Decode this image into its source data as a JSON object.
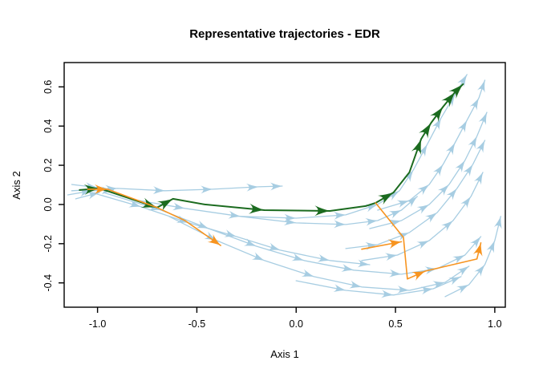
{
  "chart_data": {
    "type": "line",
    "title": "Representative trajectories - EDR",
    "xlabel": "Axis 1",
    "ylabel": "Axis 2",
    "xlim": [
      -1.168,
      1.053
    ],
    "ylim": [
      -0.524,
      0.724
    ],
    "x_ticks": [
      -1.0,
      -0.5,
      0.0,
      0.5,
      1.0
    ],
    "y_ticks": [
      -0.4,
      -0.2,
      0.0,
      0.2,
      0.4,
      0.6
    ],
    "grid": false,
    "legend": "none",
    "colors": {
      "background_trajectory": "#a7cde2",
      "representative_green": "#1b6b1f",
      "representative_orange": "#f79420",
      "axis": "#000000"
    },
    "series": [
      {
        "name": "background-top-band",
        "role": "background",
        "color_key": "background_trajectory",
        "points": [
          [
            -1.13,
            0.07
          ],
          [
            -0.9,
            0.082
          ],
          [
            -0.66,
            0.07
          ],
          [
            -0.42,
            0.078
          ],
          [
            -0.19,
            0.09
          ],
          [
            -0.07,
            0.094
          ]
        ],
        "arrows": [
          1,
          2,
          3,
          4,
          5
        ]
      },
      {
        "name": "background-cluster-1",
        "role": "background",
        "color_key": "background_trajectory",
        "points": [
          [
            -1.15,
            0.049
          ],
          [
            -1.03,
            0.07
          ],
          [
            -0.92,
            0.074
          ]
        ],
        "arrows": [
          1,
          2
        ]
      },
      {
        "name": "background-cluster-2",
        "role": "background",
        "color_key": "background_trajectory",
        "points": [
          [
            -1.13,
            0.102
          ],
          [
            -1.0,
            0.086
          ]
        ],
        "arrows": [
          1
        ]
      },
      {
        "name": "background-cluster-3",
        "role": "background",
        "color_key": "background_trajectory",
        "points": [
          [
            -1.11,
            0.029
          ],
          [
            -0.99,
            0.061
          ]
        ],
        "arrows": [
          1
        ]
      },
      {
        "name": "background-mid-rise-left",
        "role": "background",
        "color_key": "background_trajectory",
        "points": [
          [
            -0.28,
            -0.061
          ],
          [
            0.0,
            -0.07
          ],
          [
            0.25,
            -0.053
          ],
          [
            0.41,
            0.0
          ],
          [
            0.52,
            0.07
          ],
          [
            0.59,
            0.176
          ],
          [
            0.66,
            0.307
          ],
          [
            0.73,
            0.442
          ],
          [
            0.8,
            0.561
          ],
          [
            0.86,
            0.663
          ]
        ],
        "arrows": [
          1,
          2,
          3,
          4,
          5,
          6,
          7,
          8,
          9
        ]
      },
      {
        "name": "background-toprise-right",
        "role": "background",
        "color_key": "background_trajectory",
        "points": [
          [
            0.41,
            -0.029
          ],
          [
            0.57,
            0.02
          ],
          [
            0.67,
            0.102
          ],
          [
            0.74,
            0.205
          ],
          [
            0.8,
            0.315
          ],
          [
            0.86,
            0.43
          ],
          [
            0.92,
            0.544
          ],
          [
            0.95,
            0.634
          ]
        ],
        "arrows": [
          1,
          2,
          3,
          4,
          5,
          6,
          7
        ]
      },
      {
        "name": "background-mid-band",
        "role": "background",
        "color_key": "background_trajectory",
        "points": [
          [
            -0.84,
            0.029
          ],
          [
            -0.56,
            -0.02
          ],
          [
            -0.28,
            -0.061
          ],
          [
            0.0,
            -0.094
          ],
          [
            0.25,
            -0.102
          ],
          [
            0.41,
            -0.082
          ],
          [
            0.53,
            -0.029
          ],
          [
            0.61,
            0.041
          ]
        ],
        "arrows": [
          1,
          2,
          3,
          4,
          5,
          6,
          7
        ]
      },
      {
        "name": "background-sweep-1",
        "role": "background",
        "color_key": "background_trajectory",
        "points": [
          [
            -0.97,
            0.061
          ],
          [
            -0.68,
            -0.029
          ],
          [
            -0.44,
            -0.123
          ],
          [
            -0.2,
            -0.213
          ],
          [
            0.04,
            -0.286
          ],
          [
            0.29,
            -0.335
          ],
          [
            0.53,
            -0.356
          ],
          [
            0.71,
            -0.327
          ],
          [
            0.85,
            -0.258
          ],
          [
            0.93,
            -0.164
          ]
        ],
        "arrows": [
          1,
          2,
          3,
          4,
          5,
          6,
          7,
          8,
          9
        ]
      },
      {
        "name": "background-sweep-2",
        "role": "background",
        "color_key": "background_trajectory",
        "points": [
          [
            -0.64,
            -0.061
          ],
          [
            -0.4,
            -0.184
          ],
          [
            -0.16,
            -0.286
          ],
          [
            0.09,
            -0.368
          ],
          [
            0.33,
            -0.421
          ],
          [
            0.57,
            -0.438
          ],
          [
            0.75,
            -0.397
          ],
          [
            0.87,
            -0.315
          ]
        ],
        "arrows": [
          1,
          2,
          3,
          4,
          5,
          6,
          7
        ]
      },
      {
        "name": "background-bottom-trough",
        "role": "background",
        "color_key": "background_trajectory",
        "points": [
          [
            0.0,
            -0.389
          ],
          [
            0.25,
            -0.438
          ],
          [
            0.49,
            -0.462
          ],
          [
            0.69,
            -0.43
          ],
          [
            0.83,
            -0.368
          ]
        ],
        "arrows": [
          1,
          2,
          3,
          4
        ]
      },
      {
        "name": "background-right-fan-1",
        "role": "background",
        "color_key": "background_trajectory",
        "points": [
          [
            0.25,
            -0.225
          ],
          [
            0.41,
            -0.205
          ],
          [
            0.57,
            -0.143
          ],
          [
            0.71,
            -0.041
          ],
          [
            0.81,
            0.082
          ],
          [
            0.89,
            0.205
          ],
          [
            0.95,
            0.327
          ]
        ],
        "arrows": [
          1,
          2,
          3,
          4,
          5,
          6
        ]
      },
      {
        "name": "background-right-fan-2",
        "role": "background",
        "color_key": "background_trajectory",
        "points": [
          [
            0.33,
            -0.286
          ],
          [
            0.51,
            -0.258
          ],
          [
            0.67,
            -0.184
          ],
          [
            0.79,
            -0.082
          ],
          [
            0.88,
            0.041
          ],
          [
            0.94,
            0.164
          ]
        ],
        "arrows": [
          1,
          2,
          3,
          4,
          5
        ]
      },
      {
        "name": "background-right-edge",
        "role": "background",
        "color_key": "background_trajectory",
        "points": [
          [
            0.75,
            -0.47
          ],
          [
            0.87,
            -0.409
          ],
          [
            0.95,
            -0.307
          ],
          [
            1.0,
            -0.184
          ],
          [
            1.03,
            -0.061
          ]
        ],
        "arrows": [
          1,
          2,
          3,
          4
        ]
      },
      {
        "name": "background-diag-mid",
        "role": "background",
        "color_key": "background_trajectory",
        "points": [
          [
            -1.03,
            0.061
          ],
          [
            -0.78,
            -0.012
          ],
          [
            -0.54,
            -0.094
          ],
          [
            -0.3,
            -0.164
          ],
          [
            -0.08,
            -0.233
          ],
          [
            0.17,
            -0.286
          ],
          [
            0.37,
            -0.307
          ]
        ],
        "arrows": [
          1,
          2,
          3,
          4,
          5,
          6
        ]
      },
      {
        "name": "background-right-fan-3",
        "role": "background",
        "color_key": "background_trajectory",
        "points": [
          [
            0.37,
            -0.123
          ],
          [
            0.53,
            -0.082
          ],
          [
            0.67,
            0.0
          ],
          [
            0.77,
            0.102
          ],
          [
            0.85,
            0.225
          ],
          [
            0.91,
            0.348
          ],
          [
            0.96,
            0.47
          ]
        ],
        "arrows": [
          1,
          2,
          3,
          4,
          5,
          6
        ]
      },
      {
        "name": "representative-green",
        "role": "representative",
        "color_key": "representative_green",
        "points": [
          [
            -1.09,
            0.074
          ],
          [
            -0.99,
            0.082
          ],
          [
            -0.7,
            -0.016
          ],
          [
            -0.62,
            0.029
          ],
          [
            -0.46,
            0.0
          ],
          [
            -0.16,
            -0.029
          ],
          [
            0.17,
            -0.033
          ],
          [
            0.35,
            -0.008
          ],
          [
            0.4,
            0.008
          ],
          [
            0.49,
            0.061
          ],
          [
            0.57,
            0.164
          ],
          [
            0.63,
            0.335
          ],
          [
            0.68,
            0.417
          ],
          [
            0.74,
            0.499
          ],
          [
            0.8,
            0.573
          ],
          [
            0.84,
            0.614
          ]
        ],
        "arrows": [
          1,
          2,
          3,
          5,
          6,
          9,
          11,
          12,
          13,
          14,
          15
        ]
      },
      {
        "name": "representative-orange-1",
        "role": "representative",
        "color_key": "representative_orange",
        "points": [
          [
            -1.05,
            0.078
          ],
          [
            -0.95,
            0.078
          ],
          [
            -0.7,
            -0.016
          ],
          [
            -0.56,
            -0.082
          ],
          [
            -0.38,
            -0.209
          ]
        ],
        "arrows": [
          1,
          4
        ]
      },
      {
        "name": "representative-orange-2",
        "role": "representative",
        "color_key": "representative_orange",
        "points": [
          [
            0.4,
            0.008
          ],
          [
            0.54,
            -0.168
          ],
          [
            0.56,
            -0.38
          ],
          [
            0.65,
            -0.34
          ],
          [
            0.91,
            -0.278
          ],
          [
            0.93,
            -0.196
          ]
        ],
        "arrows": [
          3,
          5
        ]
      },
      {
        "name": "representative-orange-3",
        "role": "representative",
        "color_key": "representative_orange",
        "points": [
          [
            0.33,
            -0.228
          ],
          [
            0.53,
            -0.19
          ]
        ],
        "arrows": [
          1
        ]
      }
    ]
  },
  "layout_labels": {
    "x_tick_labels": [
      "-1.0",
      "-0.5",
      "0.0",
      "0.5",
      "1.0"
    ],
    "y_tick_labels": [
      "-0.4",
      "-0.2",
      "0.0",
      "0.2",
      "0.4",
      "0.6"
    ]
  }
}
